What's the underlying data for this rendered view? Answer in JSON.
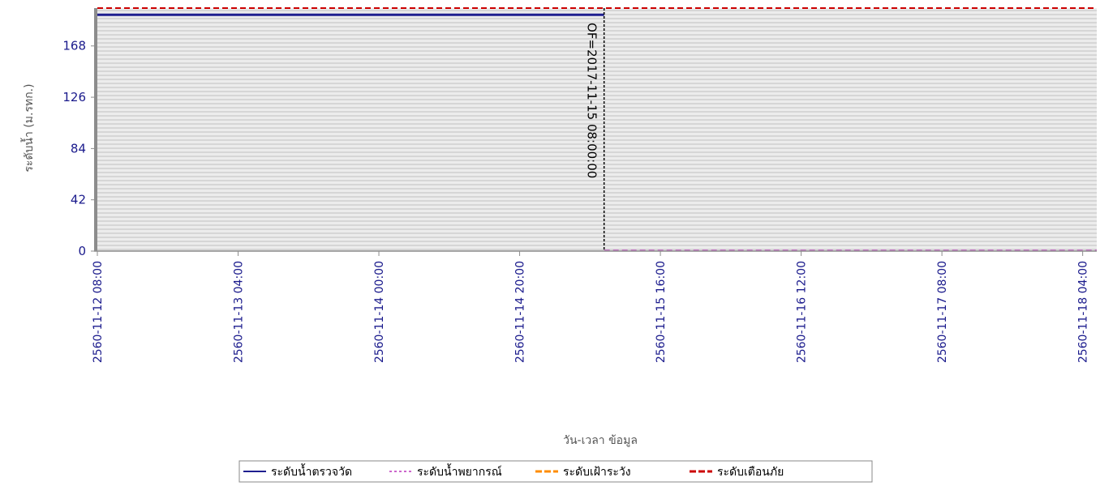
{
  "chart_data": {
    "type": "line",
    "title": "",
    "xlabel": "วัน-เวลา ข้อมูล",
    "ylabel": "ระดับน้ำ (ม.รทก.)",
    "ylim": [
      0,
      199
    ],
    "yticks": [
      0,
      42,
      84,
      126,
      168
    ],
    "xlim": [
      "2560-11-12 08:00",
      "2560-11-18 06:00"
    ],
    "xticks": [
      "2560-11-12 08:00",
      "2560-11-13 04:00",
      "2560-11-14 00:00",
      "2560-11-14 20:00",
      "2560-11-15 16:00",
      "2560-11-16 12:00",
      "2560-11-17 08:00",
      "2560-11-18 04:00"
    ],
    "grid": true,
    "legend_position": "bottom",
    "series": [
      {
        "name": "ระดับน้ำตรวจวัด",
        "color": "#1f1f8f",
        "style": "solid",
        "points": [
          [
            "2560-11-12 08:00",
            193.5
          ],
          [
            "2560-11-15 08:00",
            193.5
          ]
        ]
      },
      {
        "name": "ระดับน้ำพยากรณ์",
        "color": "#cc66cc",
        "style": "dashed",
        "points": [
          [
            "2560-11-15 08:00",
            0.5
          ],
          [
            "2560-11-18 06:00",
            0.5
          ]
        ]
      },
      {
        "name": "ระดับเฝ้าระวัง",
        "color": "#ff8c00",
        "style": "dashed",
        "points": [
          [
            "2560-11-12 08:00",
            199
          ],
          [
            "2560-11-18 06:00",
            199
          ]
        ]
      },
      {
        "name": "ระดับเตือนภัย",
        "color": "#cc0000",
        "style": "dashed",
        "points": [
          [
            "2560-11-12 08:00",
            199
          ],
          [
            "2560-11-18 06:00",
            199
          ]
        ]
      }
    ],
    "annotations": [
      {
        "label": "OF=2017-11-15 08:00:00",
        "x": "2560-11-15 08:00",
        "orientation": "vertical",
        "color": "#000000"
      }
    ]
  }
}
